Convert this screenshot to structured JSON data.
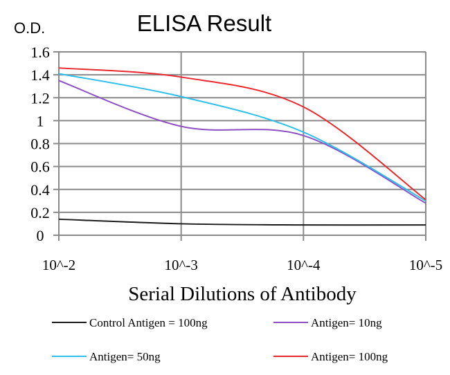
{
  "chart_data": {
    "type": "line",
    "title": "ELISA Result",
    "ylabel": "O.D.",
    "xlabel": "Serial Dilutions of Antibody",
    "categories": [
      "10^-2",
      "10^-3",
      "10^-4",
      "10^-5"
    ],
    "ylim": [
      0,
      1.6
    ],
    "yticks": [
      "0",
      "0.2",
      "0.4",
      "0.6",
      "0.8",
      "1",
      "1.2",
      "1.4",
      "1.6"
    ],
    "grid": true,
    "legend_position": "bottom",
    "series": [
      {
        "name": "Control Antigen = 100ng",
        "color": "#1a1a1a",
        "values": [
          0.14,
          0.1,
          0.09,
          0.09
        ]
      },
      {
        "name": "Antigen= 10ng",
        "color": "#8e4fc4",
        "values": [
          1.35,
          0.95,
          0.87,
          0.28
        ]
      },
      {
        "name": "Antigen= 50ng",
        "color": "#2ec0ea",
        "values": [
          1.41,
          1.21,
          0.9,
          0.3
        ]
      },
      {
        "name": "Antigen= 100ng",
        "color": "#e8282c",
        "values": [
          1.46,
          1.38,
          1.12,
          0.31
        ]
      }
    ]
  }
}
